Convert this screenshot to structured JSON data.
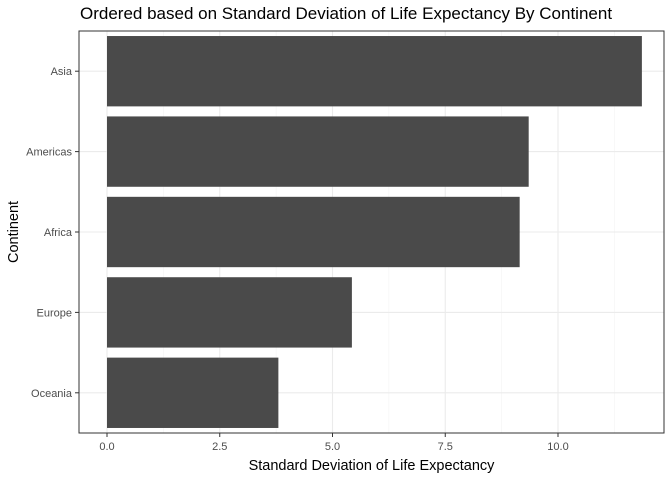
{
  "chart_data": {
    "type": "bar",
    "orientation": "horizontal",
    "title": "Ordered based on Standard Deviation of Life Expectancy By Continent",
    "xlabel": "Standard Deviation of Life Expectancy",
    "ylabel": "Continent",
    "categories": [
      "Asia",
      "Americas",
      "Africa",
      "Europe",
      "Oceania"
    ],
    "values": [
      11.86,
      9.35,
      9.15,
      5.43,
      3.8
    ],
    "xlim": [
      0,
      12.45
    ],
    "x_ticks": [
      "0.0",
      "2.5",
      "5.0",
      "7.5",
      "10.0"
    ],
    "grid": true,
    "legend": "none",
    "colors": {
      "bar": "#4a4a4a",
      "grid_major": "#ebebeb",
      "grid_minor": "#f3f3f3",
      "panel_border": "#333333",
      "tick_label": "#4d4d4d",
      "axis_title": "#000000"
    }
  }
}
